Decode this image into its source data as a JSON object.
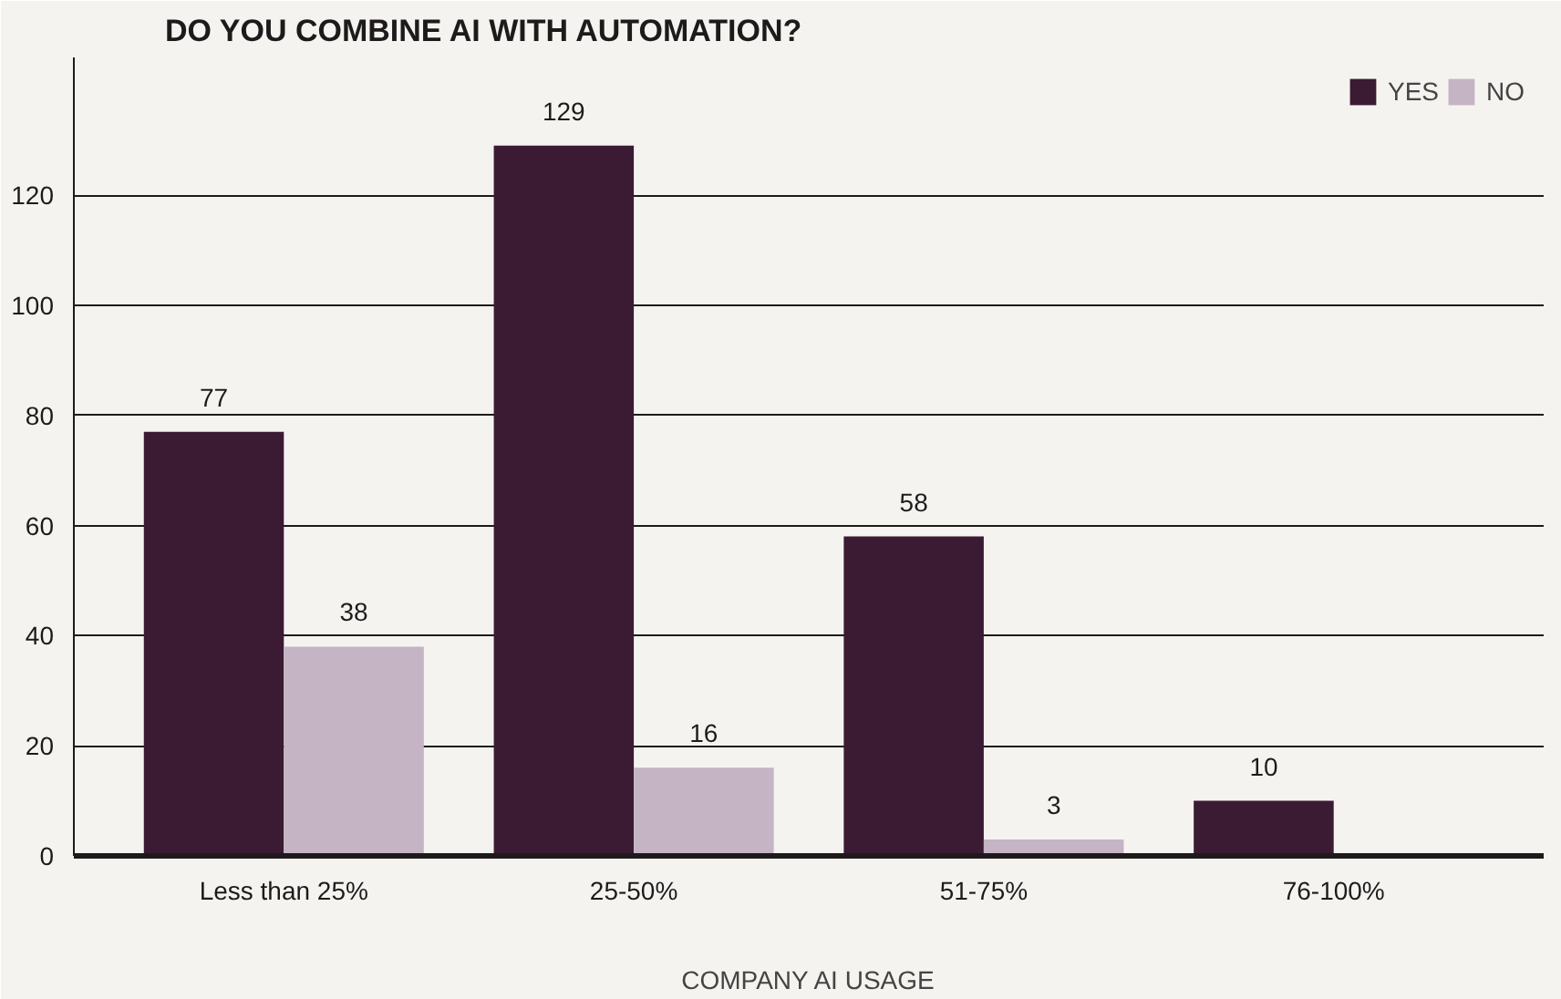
{
  "chart_data": {
    "type": "bar",
    "title": "DO YOU COMBINE AI WITH AUTOMATION?",
    "xlabel": "COMPANY AI USAGE",
    "categories": [
      "Less than 25%",
      "25-50%",
      "51-75%",
      "76-100%"
    ],
    "series": [
      {
        "name": "YES",
        "color": "#3b1a33",
        "values": [
          77,
          129,
          58,
          10
        ]
      },
      {
        "name": "NO",
        "color": "#c4b4c4",
        "values": [
          38,
          16,
          3,
          null
        ]
      }
    ],
    "ylim": [
      0,
      145
    ],
    "yticks": [
      0,
      20,
      40,
      60,
      80,
      100,
      120
    ],
    "grid": "y",
    "legend": "top right",
    "data_labels": true
  }
}
